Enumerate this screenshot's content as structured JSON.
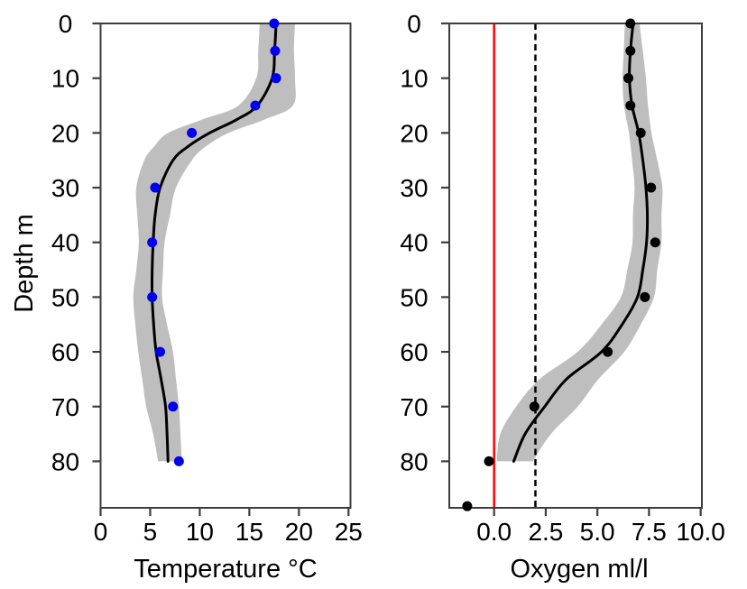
{
  "figure": {
    "background": "#ffffff",
    "band_color": "#bebebe",
    "axis_color": "#3d3d3d",
    "fit_line_color": "#000000",
    "text_color": "#000000"
  },
  "chart_data": [
    {
      "id": "temperature-profile",
      "type": "scatter",
      "xlabel": "Temperature °C",
      "ylabel": "Depth m",
      "xlim": [
        0,
        25.2
      ],
      "ylim": [
        0,
        88.5
      ],
      "grid": false,
      "xticks": {
        "values": [
          0,
          5,
          10,
          15,
          20,
          25
        ],
        "labels": [
          "0",
          "5",
          "10",
          "15",
          "20",
          "25"
        ]
      },
      "yticks": {
        "values": [
          0,
          10,
          20,
          30,
          40,
          50,
          60,
          70,
          80
        ],
        "labels": [
          "0",
          "10",
          "20",
          "30",
          "40",
          "50",
          "60",
          "70",
          "80"
        ]
      },
      "point_color": "#0000f0",
      "points": {
        "depth": [
          0,
          5,
          10,
          15,
          20,
          30,
          40,
          50,
          60,
          70,
          80
        ],
        "value": [
          17.5,
          17.6,
          17.7,
          15.6,
          9.2,
          5.5,
          5.2,
          5.2,
          6.0,
          7.3,
          7.9
        ]
      },
      "fit_line": {
        "depth": [
          0,
          5,
          10,
          15,
          17.5,
          20,
          22.5,
          25,
          30,
          35,
          40,
          45,
          50,
          55,
          60,
          65,
          70,
          75,
          80
        ],
        "value": [
          17.7,
          17.55,
          17.3,
          15.8,
          13.8,
          11.0,
          8.8,
          7.3,
          6.0,
          5.5,
          5.3,
          5.2,
          5.2,
          5.35,
          5.6,
          6.1,
          6.55,
          6.7,
          6.8
        ]
      },
      "band": {
        "depth": [
          0,
          5,
          10,
          15,
          17.5,
          20,
          22.5,
          25,
          30,
          35,
          40,
          45,
          50,
          55,
          60,
          65,
          70,
          75,
          80
        ],
        "lower": [
          16.05,
          15.9,
          15.7,
          13.9,
          10.3,
          6.8,
          5.4,
          4.4,
          3.6,
          3.7,
          3.85,
          3.6,
          3.3,
          3.5,
          3.8,
          4.2,
          4.6,
          5.3,
          5.8
        ],
        "upper": [
          19.6,
          19.5,
          19.6,
          19.4,
          16.6,
          12.9,
          10.6,
          9.2,
          7.6,
          7.0,
          6.45,
          6.3,
          6.2,
          6.7,
          7.3,
          7.6,
          7.9,
          8.05,
          8.2
        ]
      },
      "vlines": []
    },
    {
      "id": "oxygen-profile",
      "type": "scatter",
      "xlabel": "Oxygen ml/l",
      "ylabel": "",
      "xlim": [
        -2.17,
        10.06
      ],
      "ylim": [
        0,
        88.5
      ],
      "grid": false,
      "xticks": {
        "values": [
          0,
          2.5,
          5,
          7.5,
          10
        ],
        "labels": [
          "0.0",
          "2.5",
          "5.0",
          "7.5",
          "10.0"
        ]
      },
      "yticks": {
        "values": [
          0,
          10,
          20,
          30,
          40,
          50,
          60,
          70,
          80
        ],
        "labels": [
          "0",
          "10",
          "20",
          "30",
          "40",
          "50",
          "60",
          "70",
          "80"
        ]
      },
      "point_color": "#000000",
      "points": {
        "depth": [
          0,
          5,
          10,
          15,
          20,
          30,
          40,
          50,
          60,
          70,
          80,
          88.2
        ],
        "value": [
          6.6,
          6.6,
          6.5,
          6.6,
          7.1,
          7.6,
          7.8,
          7.3,
          5.5,
          1.95,
          -0.25,
          -1.3
        ]
      },
      "fit_line": {
        "depth": [
          0,
          5,
          10,
          15,
          20,
          25,
          30,
          35,
          40,
          45,
          50,
          55,
          60,
          65,
          70,
          75,
          80
        ],
        "value": [
          6.73,
          6.6,
          6.55,
          6.68,
          7.0,
          7.2,
          7.35,
          7.42,
          7.38,
          7.2,
          6.94,
          6.2,
          5.2,
          3.5,
          2.45,
          1.5,
          0.95
        ]
      },
      "band": {
        "depth": [
          0,
          5,
          10,
          15,
          20,
          25,
          30,
          35,
          40,
          45,
          50,
          55,
          60,
          65,
          70,
          75,
          80
        ],
        "lower": [
          6.33,
          6.28,
          6.22,
          6.29,
          6.53,
          6.68,
          6.8,
          6.72,
          6.7,
          6.45,
          6.14,
          5.2,
          4.04,
          2.2,
          1.07,
          0.3,
          0.13
        ],
        "upper": [
          7.04,
          7.2,
          7.35,
          7.45,
          7.62,
          7.9,
          8.15,
          8.1,
          8.1,
          7.9,
          7.74,
          7.1,
          6.3,
          5.05,
          4.05,
          2.75,
          1.87
        ]
      },
      "vlines": [
        {
          "value": 0.0,
          "color": "#ff0000",
          "style": "solid",
          "name": "zero-oxygen-reference-line"
        },
        {
          "value": 2.0,
          "color": "#000000",
          "style": "dashed",
          "name": "oxygen-threshold-dashed-line"
        }
      ]
    }
  ]
}
